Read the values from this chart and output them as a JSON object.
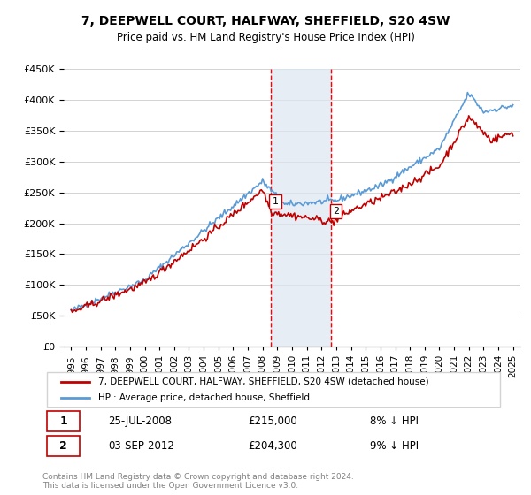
{
  "title": "7, DEEPWELL COURT, HALFWAY, SHEFFIELD, S20 4SW",
  "subtitle": "Price paid vs. HM Land Registry's House Price Index (HPI)",
  "legend_line1": "7, DEEPWELL COURT, HALFWAY, SHEFFIELD, S20 4SW (detached house)",
  "legend_line2": "HPI: Average price, detached house, Sheffield",
  "annotation1_label": "1",
  "annotation1_date": "25-JUL-2008",
  "annotation1_price": "£215,000",
  "annotation1_hpi": "8% ↓ HPI",
  "annotation2_label": "2",
  "annotation2_date": "03-SEP-2012",
  "annotation2_price": "£204,300",
  "annotation2_hpi": "9% ↓ HPI",
  "footer": "Contains HM Land Registry data © Crown copyright and database right 2024.\nThis data is licensed under the Open Government Licence v3.0.",
  "hpi_color": "#5b9bd5",
  "price_color": "#c00000",
  "annotation_line_color": "#ff0000",
  "shading_color": "#dce6f1",
  "ylim_min": 0,
  "ylim_max": 450000,
  "start_year": 1995,
  "end_year": 2025,
  "anno1_year": 2008.57,
  "anno2_year": 2012.67
}
